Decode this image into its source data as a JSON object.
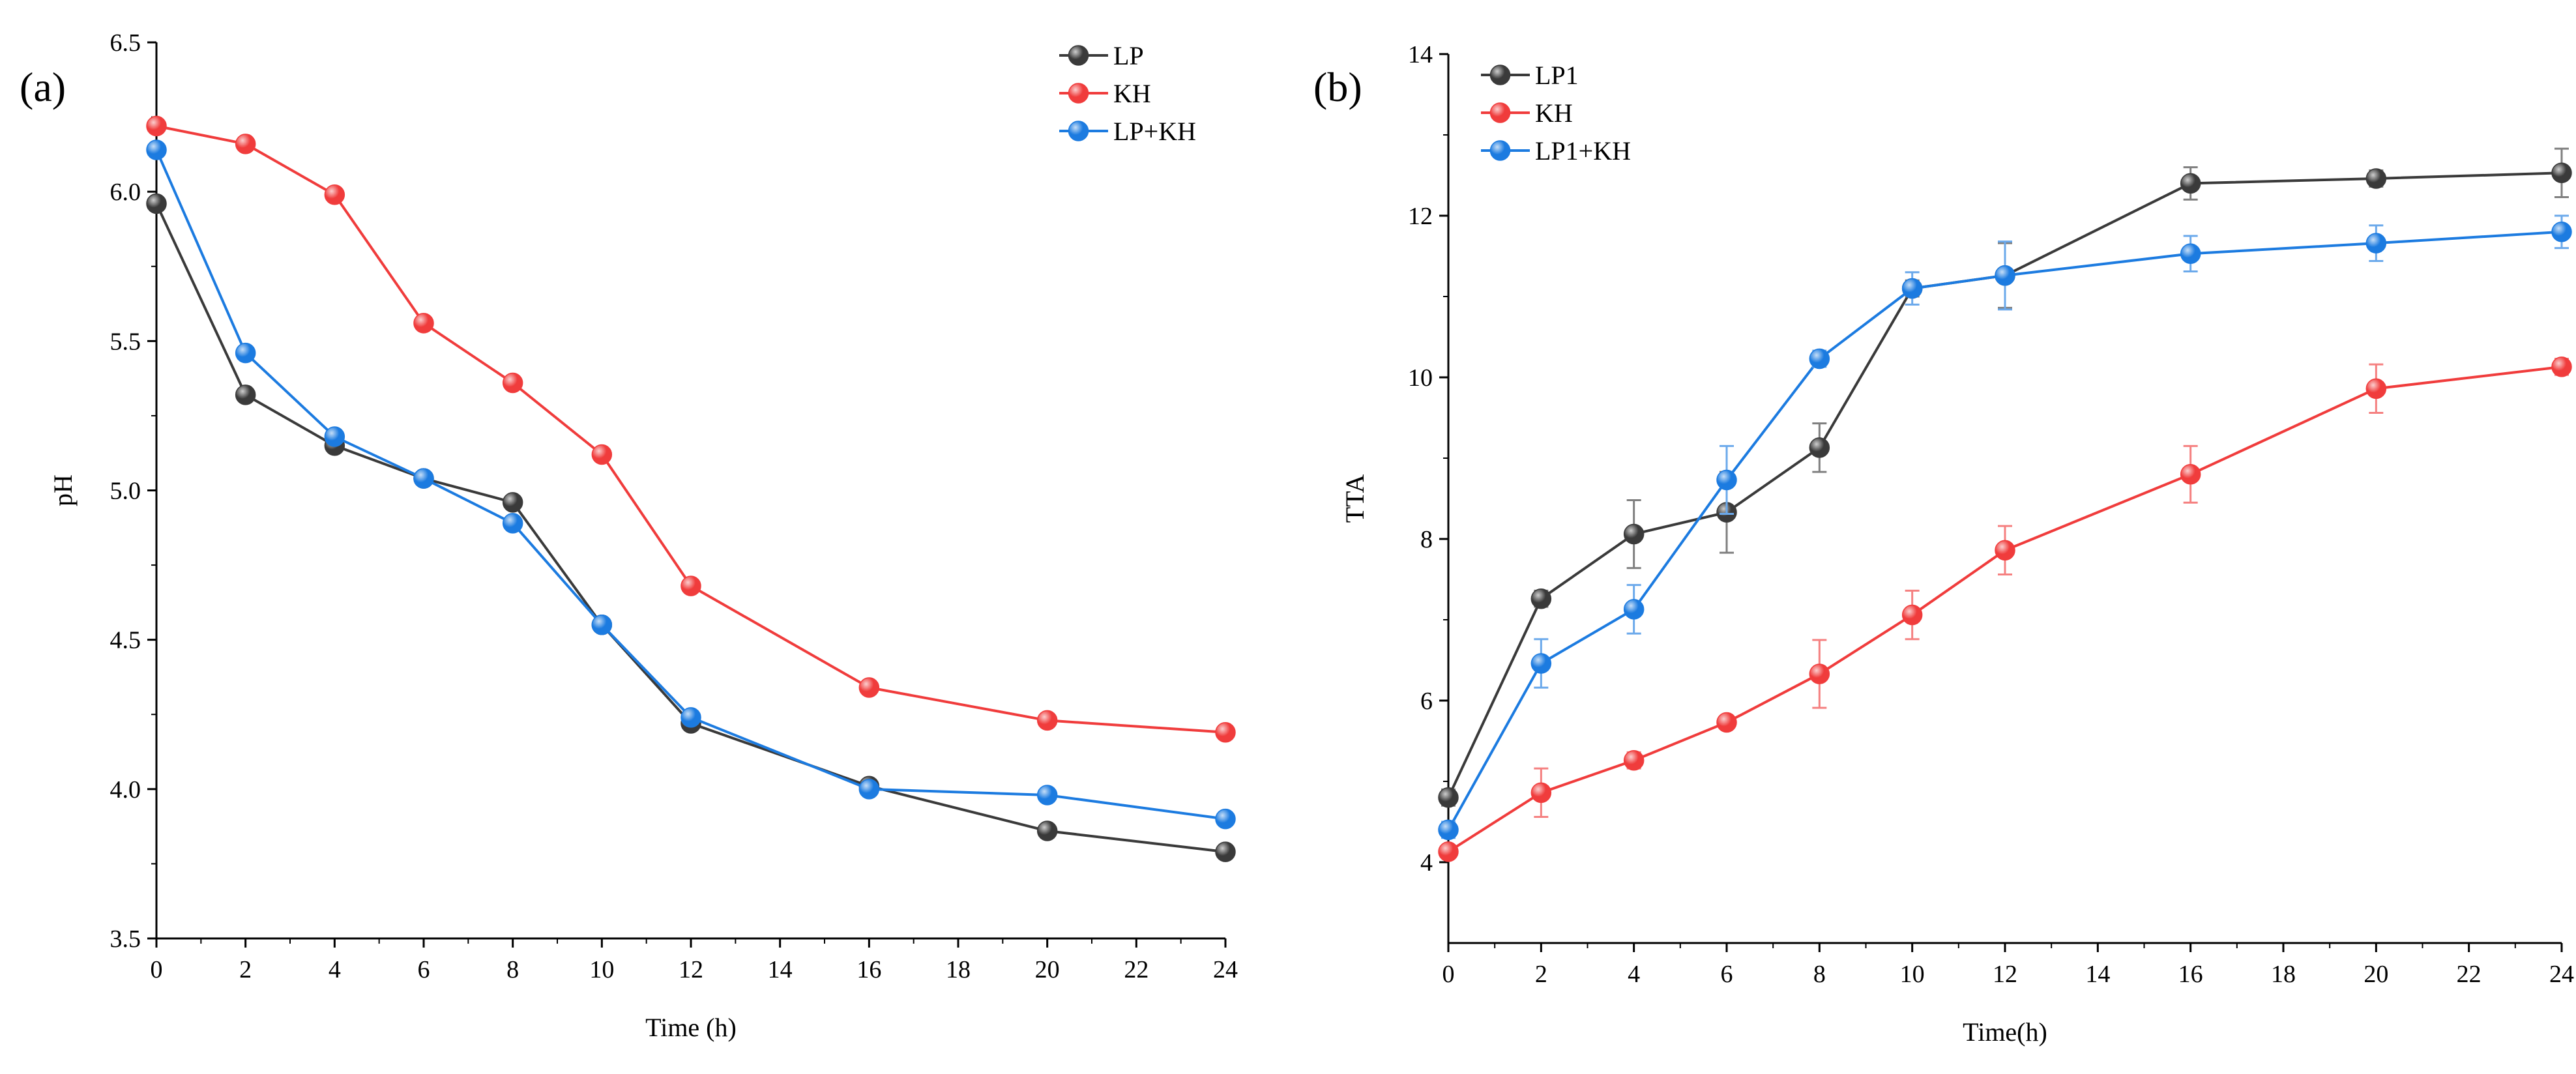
{
  "chart_data": [
    {
      "type": "line",
      "panel_label": "(a)",
      "xlabel": "Time (h)",
      "ylabel": "pH",
      "xlim": [
        0,
        24
      ],
      "ylim": [
        3.5,
        6.5
      ],
      "xticks": [
        0,
        2,
        4,
        6,
        8,
        10,
        12,
        14,
        16,
        18,
        20,
        22,
        24
      ],
      "yticks": [
        3.5,
        4.0,
        4.5,
        5.0,
        5.5,
        6.0,
        6.5
      ],
      "ytick_labels": [
        "3.5",
        "4.0",
        "4.5",
        "5.0",
        "5.5",
        "6.0",
        "6.5"
      ],
      "x": [
        0,
        2,
        4,
        6,
        8,
        10,
        12,
        16,
        20,
        24
      ],
      "legend_position": "top-right",
      "series": [
        {
          "name": "LP",
          "color": "#3a3a3a",
          "values": [
            5.96,
            5.32,
            5.15,
            5.04,
            4.96,
            4.55,
            4.22,
            4.01,
            3.86,
            3.79
          ]
        },
        {
          "name": "KH",
          "color": "#f03c3c",
          "values": [
            6.22,
            6.16,
            5.99,
            5.56,
            5.36,
            5.12,
            4.68,
            4.34,
            4.23,
            4.19
          ]
        },
        {
          "name": "LP+KH",
          "color": "#1c7be0",
          "values": [
            6.14,
            5.46,
            5.18,
            5.04,
            4.89,
            4.55,
            4.24,
            4.0,
            3.98,
            3.9
          ]
        }
      ]
    },
    {
      "type": "line",
      "panel_label": "(b)",
      "xlabel": "Time(h)",
      "ylabel": "TTA",
      "xlim": [
        0,
        24
      ],
      "ylim": [
        3,
        14
      ],
      "xticks": [
        0,
        2,
        4,
        6,
        8,
        10,
        12,
        14,
        16,
        18,
        20,
        22,
        24
      ],
      "yticks": [
        4,
        6,
        8,
        10,
        12,
        14
      ],
      "ytick_labels": [
        "4",
        "6",
        "8",
        "10",
        "12",
        "14"
      ],
      "x": [
        0,
        2,
        4,
        6,
        8,
        10,
        12,
        16,
        20,
        24
      ],
      "legend_position": "top-left",
      "series": [
        {
          "name": "LP1",
          "color": "#3a3a3a",
          "values": [
            4.8,
            7.26,
            8.06,
            8.33,
            9.13,
            11.1,
            11.26,
            12.4,
            12.46,
            12.53
          ],
          "errors": [
            0.1,
            0.1,
            0.42,
            0.5,
            0.3,
            0.1,
            0.4,
            0.2,
            0.1,
            0.3
          ]
        },
        {
          "name": "KH",
          "color": "#f03c3c",
          "values": [
            4.13,
            4.86,
            5.26,
            5.73,
            6.33,
            7.06,
            7.86,
            8.8,
            9.86,
            10.13
          ],
          "errors": [
            0.05,
            0.3,
            0.1,
            0.08,
            0.42,
            0.3,
            0.3,
            0.35,
            0.3,
            0.1
          ]
        },
        {
          "name": "LP1+KH",
          "color": "#1c7be0",
          "values": [
            4.4,
            6.46,
            7.13,
            8.73,
            10.23,
            11.1,
            11.26,
            11.53,
            11.66,
            11.8
          ],
          "errors": [
            0.1,
            0.3,
            0.3,
            0.42,
            0.1,
            0.2,
            0.42,
            0.22,
            0.22,
            0.2
          ]
        }
      ]
    }
  ]
}
